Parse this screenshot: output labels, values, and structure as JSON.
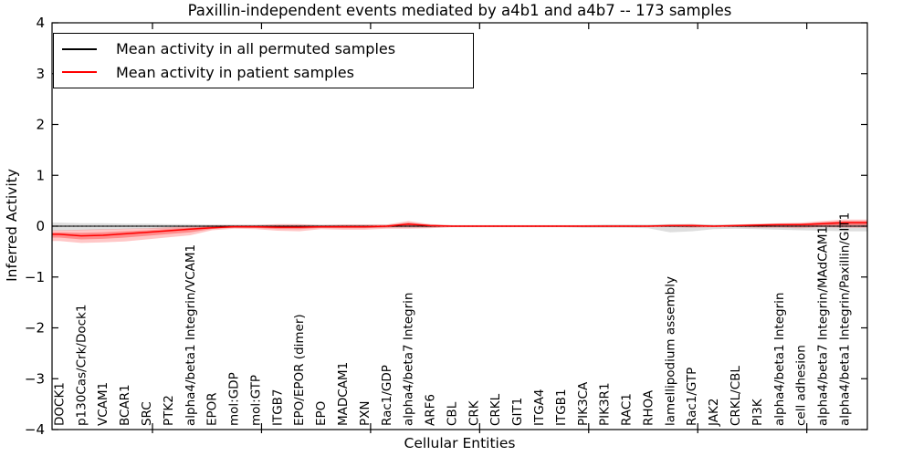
{
  "chart_data": {
    "type": "line",
    "title": "Paxillin-independent events mediated by a4b1 and a4b7 -- 173 samples",
    "xlabel": "Cellular Entities",
    "ylabel": "Inferred Activity",
    "ylim": [
      -4,
      4
    ],
    "yticks": [
      {
        "v": 4,
        "label": "4"
      },
      {
        "v": 3,
        "label": "3"
      },
      {
        "v": 2,
        "label": "2"
      },
      {
        "v": 1,
        "label": "1"
      },
      {
        "v": 0,
        "label": "0"
      },
      {
        "v": -1,
        "label": "−1"
      },
      {
        "v": -2,
        "label": "−2"
      },
      {
        "v": -3,
        "label": "−3"
      },
      {
        "v": -4,
        "label": "−4"
      }
    ],
    "grid": false,
    "legend_position": "upper-left",
    "zero_line": "dotted",
    "categories": [
      "DOCK1",
      "p130Cas/Crk/Dock1",
      "VCAM1",
      "BCAR1",
      "SRC",
      "PTK2",
      "alpha4/beta1 Integrin/VCAM1",
      "EPOR",
      "mol:GDP",
      "mol:GTP",
      "ITGB7",
      "EPO/EPOR (dimer)",
      "EPO",
      "MADCAM1",
      "PXN",
      "Rac1/GDP",
      "alpha4/beta7 Integrin",
      "ARF6",
      "CBL",
      "CRK",
      "CRKL",
      "GIT1",
      "ITGA4",
      "ITGB1",
      "PIK3CA",
      "PIK3R1",
      "RAC1",
      "RHOA",
      "lamellipodium assembly",
      "Rac1/GTP",
      "JAK2",
      "CRKL/CBL",
      "PI3K",
      "alpha4/beta1 Integrin",
      "cell adhesion",
      "alpha4/beta7 Integrin/MAdCAM1",
      "alpha4/beta1 Integrin/Paxillin/GIT1"
    ],
    "series": [
      {
        "name": "Mean activity in all permuted samples",
        "color": "#000000",
        "band_color": "#999999",
        "values": [
          0,
          0,
          0,
          0,
          0,
          0,
          0,
          0,
          0,
          0,
          0,
          0,
          0,
          0,
          0,
          0,
          0,
          0,
          0,
          0,
          0,
          0,
          0,
          0,
          0,
          0,
          0,
          0,
          0,
          0,
          0,
          0,
          0,
          0,
          0,
          0,
          0
        ],
        "band_upper": [
          0.07,
          0.06,
          0.06,
          0.05,
          0.05,
          0.04,
          0.04,
          0.03,
          0.03,
          0.03,
          0.03,
          0.03,
          0.03,
          0.03,
          0.03,
          0.03,
          0.03,
          0.03,
          0.02,
          0.02,
          0.02,
          0.02,
          0.02,
          0.02,
          0.02,
          0.03,
          0.03,
          0.03,
          0.04,
          0.04,
          0.03,
          0.03,
          0.03,
          0.04,
          0.04,
          0.05,
          0.05
        ],
        "band_lower": [
          -0.09,
          -0.08,
          -0.07,
          -0.06,
          -0.05,
          -0.05,
          -0.04,
          -0.03,
          -0.03,
          -0.03,
          -0.03,
          -0.03,
          -0.03,
          -0.03,
          -0.03,
          -0.03,
          -0.03,
          -0.03,
          -0.02,
          -0.02,
          -0.02,
          -0.02,
          -0.02,
          -0.02,
          -0.03,
          -0.03,
          -0.03,
          -0.04,
          -0.12,
          -0.1,
          -0.06,
          -0.05,
          -0.06,
          -0.07,
          -0.08,
          -0.09,
          -0.1
        ]
      },
      {
        "name": "Mean activity in patient samples",
        "color": "#ff0000",
        "band_color": "#ff0000",
        "values": [
          -0.16,
          -0.19,
          -0.18,
          -0.15,
          -0.12,
          -0.09,
          -0.06,
          -0.03,
          -0.01,
          -0.01,
          -0.02,
          -0.02,
          -0.01,
          -0.01,
          -0.01,
          0.0,
          0.04,
          0.01,
          0.0,
          0.0,
          0.0,
          0.0,
          0.0,
          0.0,
          0.0,
          0.0,
          0.0,
          0.0,
          0.01,
          0.01,
          0.0,
          0.01,
          0.02,
          0.03,
          0.03,
          0.05,
          0.07
        ],
        "band_upper": [
          -0.08,
          -0.07,
          -0.06,
          -0.05,
          -0.04,
          -0.02,
          0.0,
          0.02,
          0.02,
          0.02,
          0.04,
          0.04,
          0.02,
          0.03,
          0.03,
          0.03,
          0.1,
          0.04,
          0.02,
          0.02,
          0.02,
          0.02,
          0.02,
          0.02,
          0.02,
          0.02,
          0.02,
          0.02,
          0.03,
          0.04,
          0.02,
          0.03,
          0.05,
          0.06,
          0.07,
          0.1,
          0.13
        ],
        "band_lower": [
          -0.29,
          -0.33,
          -0.32,
          -0.3,
          -0.26,
          -0.22,
          -0.18,
          -0.08,
          -0.05,
          -0.06,
          -0.09,
          -0.1,
          -0.06,
          -0.07,
          -0.07,
          -0.05,
          -0.05,
          -0.04,
          -0.02,
          -0.02,
          -0.02,
          -0.02,
          -0.02,
          -0.02,
          -0.02,
          -0.02,
          -0.02,
          -0.02,
          -0.02,
          -0.03,
          -0.02,
          -0.02,
          -0.03,
          -0.03,
          -0.04,
          -0.02,
          -0.03
        ]
      }
    ]
  }
}
